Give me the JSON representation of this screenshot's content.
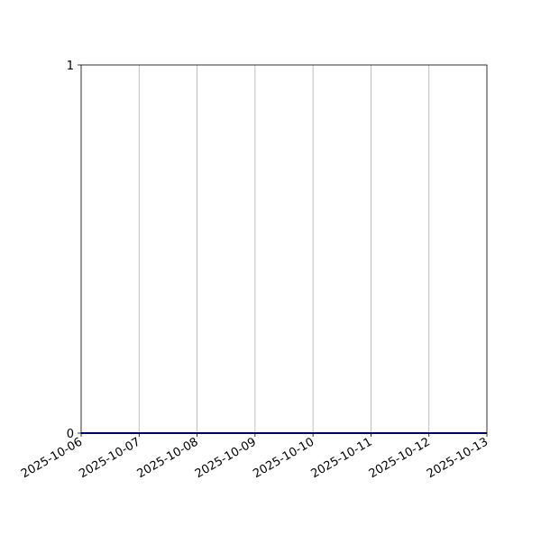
{
  "chart_data": {
    "type": "line",
    "x": [
      "2025-10-06",
      "2025-10-07",
      "2025-10-08",
      "2025-10-09",
      "2025-10-10",
      "2025-10-11",
      "2025-10-12",
      "2025-10-13"
    ],
    "series": [
      {
        "values": [
          0,
          0,
          0,
          0,
          0,
          0,
          0,
          0
        ],
        "color": "#00008b"
      }
    ],
    "xlim": [
      "2025-10-06",
      "2025-10-13"
    ],
    "ylim": [
      0,
      1
    ],
    "yticks": [
      "0",
      "1"
    ],
    "xticks": [
      "2025-10-06",
      "2025-10-07",
      "2025-10-08",
      "2025-10-09",
      "2025-10-10",
      "2025-10-11",
      "2025-10-12",
      "2025-10-13"
    ],
    "grid": "x-only",
    "grid_color": "#b0b0b0",
    "title": "",
    "xlabel": "",
    "ylabel": ""
  }
}
